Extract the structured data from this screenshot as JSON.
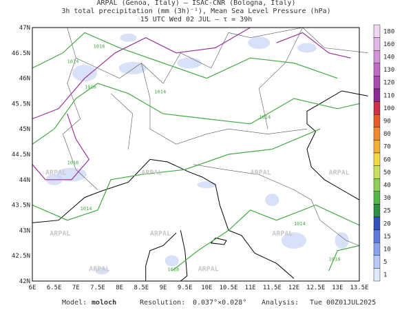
{
  "header": {
    "lines": [
      "ARPAL (Genoa, Italy)  –  ISAC-CNR (Bologna, Italy)",
      "3h total precipitation (mm (3h)⁻¹), Mean Sea Level Pressure (hPa)",
      "15 UTC Wed 02 JUL  –  τ = 39h"
    ]
  },
  "map": {
    "lat_labels": [
      "47N",
      "46.5N",
      "46N",
      "45.5N",
      "45N",
      "44.5N",
      "44N",
      "43.5N",
      "43N",
      "42.5N",
      "42N"
    ],
    "lon_labels": [
      "6E",
      "6.5E",
      "7E",
      "7.5E",
      "8E",
      "8.5E",
      "9E",
      "9.5E",
      "10E",
      "10.5E",
      "11E",
      "11.5E",
      "12E",
      "12.5E",
      "13E",
      "13.5E"
    ],
    "contour_labels": [
      "1016",
      "1014",
      "1016",
      "1014",
      "1014",
      "1018",
      "1014",
      "1014",
      "1018",
      "1016"
    ],
    "watermark": "ARPAL"
  },
  "colorbar": {
    "labels": [
      "180",
      "160",
      "140",
      "130",
      "120",
      "110",
      "100",
      "90",
      "80",
      "70",
      "60",
      "50",
      "40",
      "30",
      "25",
      "20",
      "15",
      "10",
      "5",
      "1"
    ],
    "colors": [
      "#f0d8f0",
      "#e2b8e4",
      "#d394d6",
      "#c06cc4",
      "#a84aae",
      "#8c2c94",
      "#d0304a",
      "#e85a2a",
      "#f08a2a",
      "#f4b030",
      "#f4d840",
      "#c8e05a",
      "#8ed05a",
      "#52b848",
      "#2c9040",
      "#3050c0",
      "#5a7ae0",
      "#8aa4f0",
      "#b8c8f8",
      "#e0e8fc"
    ]
  },
  "footer": {
    "model_label": "Model:",
    "model": "moloch",
    "resolution_label": "Resolution:",
    "resolution": "0.037°×0.028°",
    "analysis_label": "Analysis:",
    "analysis": "Tue 00Z01JUL2025"
  }
}
